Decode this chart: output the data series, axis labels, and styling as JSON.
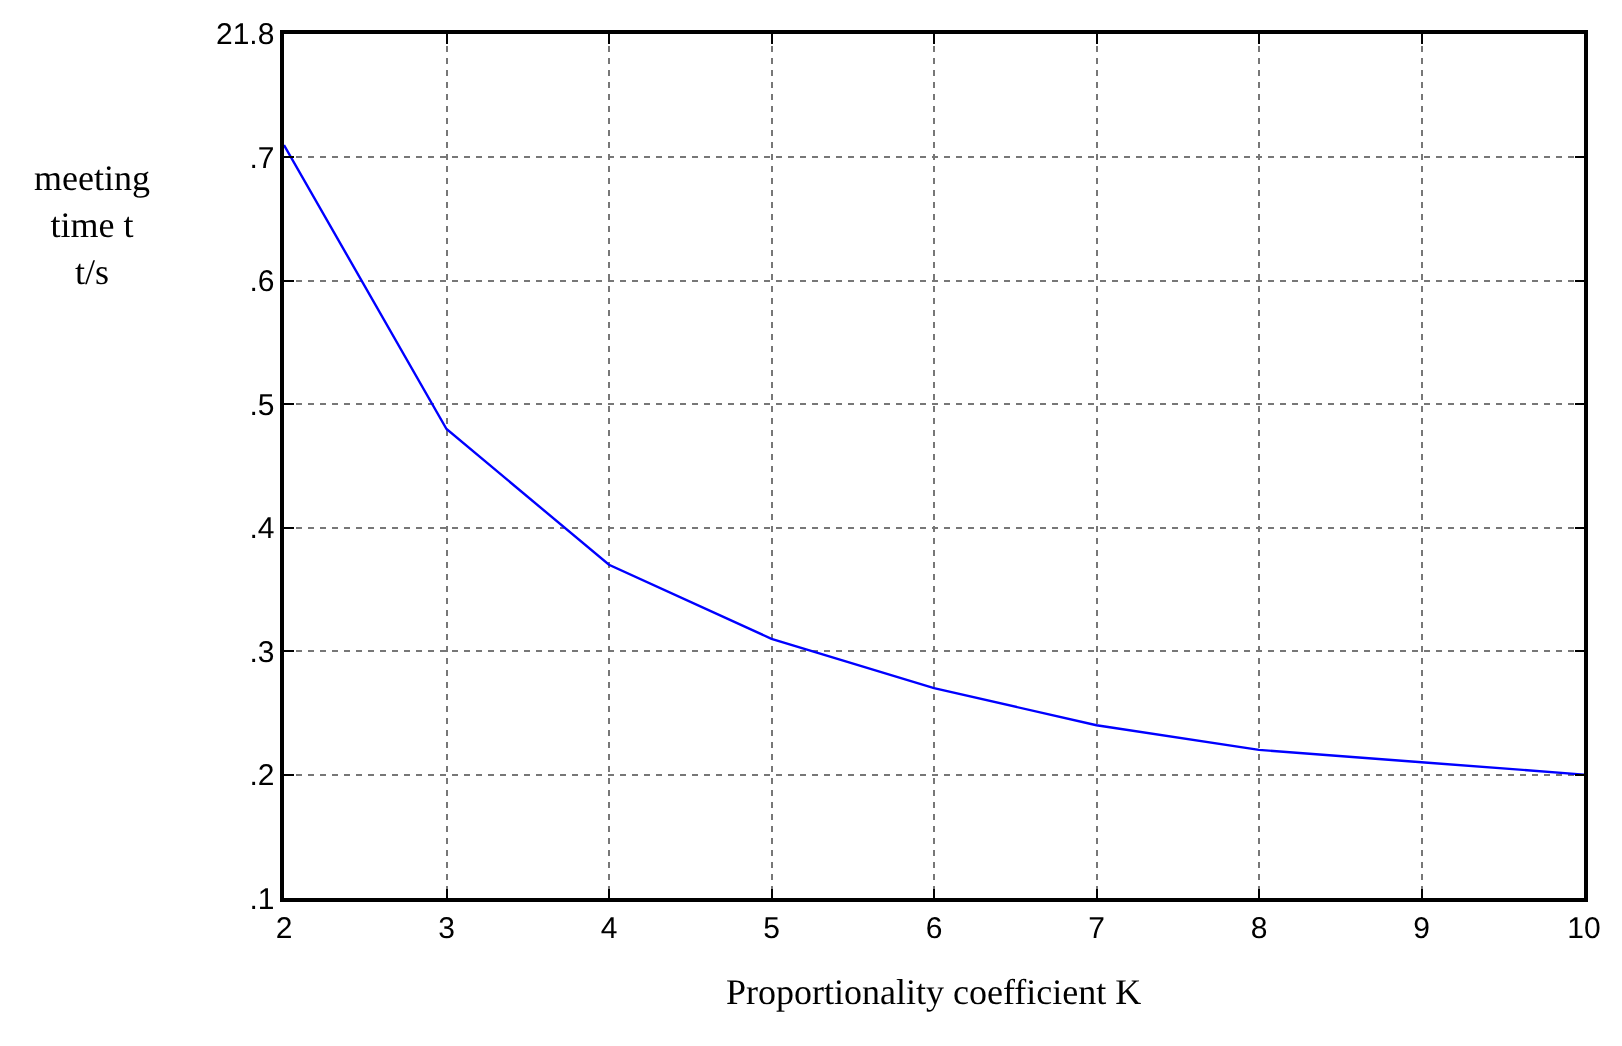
{
  "chart_data": {
    "type": "line",
    "xlabel": "Proportionality coefficient K",
    "ylabel": "meeting\ntime t\nt/s",
    "x": [
      2,
      3,
      4,
      5,
      6,
      7,
      8,
      9,
      10
    ],
    "series": [
      {
        "color": "#0000ff",
        "values": [
          0.71,
          0.48,
          0.37,
          0.31,
          0.27,
          0.24,
          0.22,
          0.21,
          0.2
        ]
      }
    ],
    "xlim": [
      2,
      10
    ],
    "xticks": [
      2,
      3,
      4,
      5,
      6,
      7,
      8,
      9,
      10
    ],
    "ylim": [
      0.1,
      0.8
    ],
    "yticks": [
      {
        "value": 0.1,
        "label": ".1"
      },
      {
        "value": 0.2,
        "label": ".2"
      },
      {
        "value": 0.3,
        "label": ".3"
      },
      {
        "value": 0.4,
        "label": ".4"
      },
      {
        "value": 0.5,
        "label": ".5"
      },
      {
        "value": 0.6,
        "label": ".6"
      },
      {
        "value": 0.7,
        "label": ".7"
      },
      {
        "value": 0.8,
        "label": null
      }
    ],
    "annotations": [
      "21.8"
    ],
    "grid": true,
    "marker": "none",
    "line_style": "solid"
  }
}
